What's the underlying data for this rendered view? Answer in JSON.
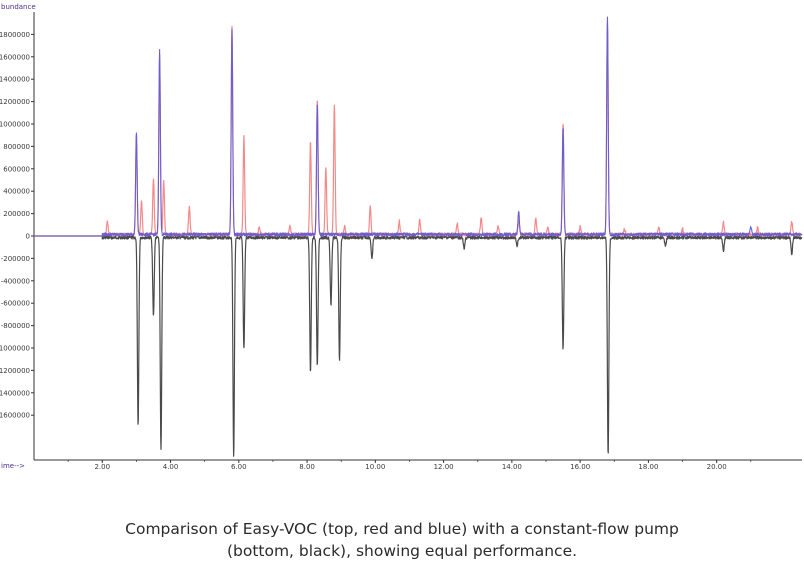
{
  "caption": {
    "line1": "Comparison of Easy-VOC (top, red and blue) with a constant-flow pump",
    "line2": "(bottom, black), showing equal performance."
  },
  "chart_data": {
    "type": "line",
    "ylabel": "bundance",
    "xlabel": "ime-->",
    "xlim": [
      0.0,
      22.5
    ],
    "ylim": [
      -2000000,
      2000000
    ],
    "x_ticks": [
      {
        "value": 2,
        "label": "2.00"
      },
      {
        "value": 4,
        "label": "4.00"
      },
      {
        "value": 6,
        "label": "6.00"
      },
      {
        "value": 8,
        "label": "8.00"
      },
      {
        "value": 10,
        "label": "10.00"
      },
      {
        "value": 12,
        "label": "12.00"
      },
      {
        "value": 14,
        "label": "14.00"
      },
      {
        "value": 16,
        "label": "16.00"
      },
      {
        "value": 18,
        "label": "18.00"
      },
      {
        "value": 20,
        "label": "20.00"
      }
    ],
    "y_ticks": [
      {
        "value": 1800000,
        "label": "1800000"
      },
      {
        "value": 1600000,
        "label": "1600000"
      },
      {
        "value": 1400000,
        "label": "1400000"
      },
      {
        "value": 1200000,
        "label": "1200000"
      },
      {
        "value": 1000000,
        "label": "1000000"
      },
      {
        "value": 800000,
        "label": "800000"
      },
      {
        "value": 600000,
        "label": "600000"
      },
      {
        "value": 400000,
        "label": "400000"
      },
      {
        "value": 200000,
        "label": "200000"
      },
      {
        "value": 0,
        "label": "0"
      },
      {
        "value": -200000,
        "label": "-200000"
      },
      {
        "value": -400000,
        "label": "-400000"
      },
      {
        "value": -600000,
        "label": "-600000"
      },
      {
        "value": -800000,
        "label": "-800000"
      },
      {
        "value": -1000000,
        "label": "-1000000"
      },
      {
        "value": -1200000,
        "label": "-1200000"
      },
      {
        "value": -1400000,
        "label": "-1400000"
      },
      {
        "value": -1600000,
        "label": "-1600000"
      }
    ],
    "colors": {
      "red": "#f28a8a",
      "blue": "#6b5fd0",
      "black": "#4a4a4a"
    },
    "series": [
      {
        "color": "red",
        "peaks": [
          [
            2.15,
            120000
          ],
          [
            3.0,
            850000
          ],
          [
            3.15,
            300000
          ],
          [
            3.5,
            500000
          ],
          [
            3.68,
            1600000
          ],
          [
            3.8,
            480000
          ],
          [
            4.55,
            250000
          ],
          [
            5.8,
            1870000
          ],
          [
            6.15,
            880000
          ],
          [
            6.6,
            70000
          ],
          [
            7.5,
            80000
          ],
          [
            8.1,
            820000
          ],
          [
            8.3,
            1200000
          ],
          [
            8.55,
            600000
          ],
          [
            8.8,
            1150000
          ],
          [
            9.1,
            70000
          ],
          [
            9.85,
            250000
          ],
          [
            10.7,
            120000
          ],
          [
            11.3,
            130000
          ],
          [
            12.4,
            100000
          ],
          [
            13.1,
            150000
          ],
          [
            13.6,
            70000
          ],
          [
            14.2,
            130000
          ],
          [
            14.7,
            140000
          ],
          [
            15.05,
            70000
          ],
          [
            15.5,
            1000000
          ],
          [
            16.0,
            70000
          ],
          [
            16.8,
            1900000
          ],
          [
            17.3,
            50000
          ],
          [
            18.3,
            60000
          ],
          [
            19.0,
            50000
          ],
          [
            20.2,
            110000
          ],
          [
            21.2,
            60000
          ],
          [
            22.2,
            120000
          ]
        ]
      },
      {
        "color": "blue",
        "peaks": [
          [
            3.0,
            920000
          ],
          [
            3.68,
            1640000
          ],
          [
            5.8,
            1820000
          ],
          [
            8.3,
            1180000
          ],
          [
            14.2,
            200000
          ],
          [
            15.5,
            950000
          ],
          [
            16.8,
            1950000
          ],
          [
            21.0,
            70000
          ]
        ]
      },
      {
        "color": "black",
        "peaks": [
          [
            3.05,
            -1680000
          ],
          [
            3.5,
            -700000
          ],
          [
            3.72,
            -1900000
          ],
          [
            5.85,
            -1950000
          ],
          [
            6.15,
            -1000000
          ],
          [
            8.1,
            -1200000
          ],
          [
            8.3,
            -1150000
          ],
          [
            8.7,
            -600000
          ],
          [
            8.95,
            -1100000
          ],
          [
            9.9,
            -200000
          ],
          [
            12.6,
            -100000
          ],
          [
            14.15,
            -80000
          ],
          [
            15.5,
            -1000000
          ],
          [
            16.82,
            -1950000
          ],
          [
            18.5,
            -80000
          ],
          [
            20.2,
            -120000
          ],
          [
            22.2,
            -150000
          ]
        ]
      }
    ]
  }
}
